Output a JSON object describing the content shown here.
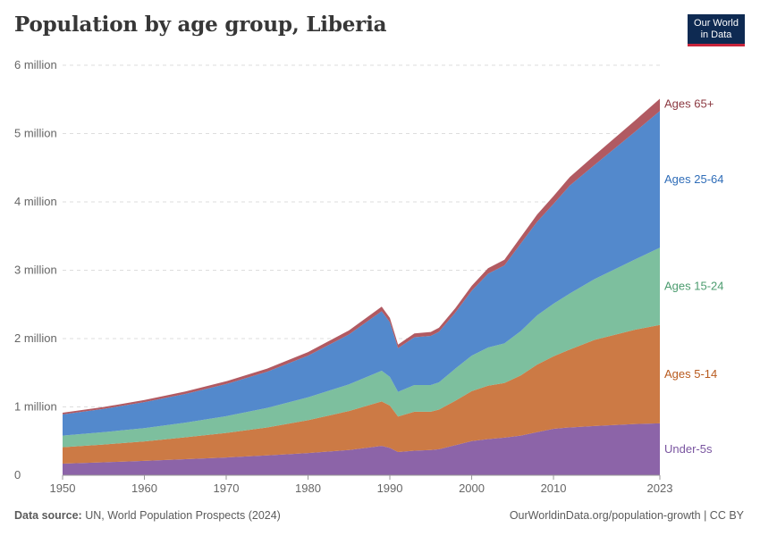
{
  "header": {
    "title": "Population by age group, Liberia",
    "logo_line1": "Our World",
    "logo_line2": "in Data"
  },
  "footer": {
    "source_label": "Data source:",
    "source_text": "UN, World Population Prospects (2024)",
    "url": "OurWorldinData.org/population-growth | CC BY"
  },
  "chart_data": {
    "type": "area",
    "stacked": true,
    "title": "Population by age group, Liberia",
    "xlabel": "",
    "ylabel": "",
    "xlim": [
      1950,
      2023
    ],
    "ylim": [
      0,
      6000000
    ],
    "y_ticks": [
      {
        "value": 0,
        "label": "0"
      },
      {
        "value": 1000000,
        "label": "1 million"
      },
      {
        "value": 2000000,
        "label": "2 million"
      },
      {
        "value": 3000000,
        "label": "3 million"
      },
      {
        "value": 4000000,
        "label": "4 million"
      },
      {
        "value": 5000000,
        "label": "5 million"
      },
      {
        "value": 6000000,
        "label": "6 million"
      }
    ],
    "x_ticks": [
      {
        "value": 1950,
        "label": "1950"
      },
      {
        "value": 1960,
        "label": "1960"
      },
      {
        "value": 1970,
        "label": "1970"
      },
      {
        "value": 1980,
        "label": "1980"
      },
      {
        "value": 1990,
        "label": "1990"
      },
      {
        "value": 2000,
        "label": "2000"
      },
      {
        "value": 2010,
        "label": "2010"
      },
      {
        "value": 2023,
        "label": "2023"
      }
    ],
    "grid": "horizontal dashed",
    "legend": "inline labels at right",
    "x": [
      1950,
      1955,
      1960,
      1965,
      1970,
      1975,
      1980,
      1985,
      1989,
      1990,
      1991,
      1993,
      1995,
      1996,
      1998,
      2000,
      2002,
      2004,
      2006,
      2008,
      2010,
      2012,
      2015,
      2020,
      2023
    ],
    "series": [
      {
        "name": "Under-5s",
        "color": "#8c64a8",
        "label_color": "#7a55a0",
        "values": [
          170000,
          190000,
          210000,
          235000,
          260000,
          290000,
          325000,
          370000,
          430000,
          400000,
          340000,
          360000,
          370000,
          380000,
          440000,
          500000,
          530000,
          550000,
          580000,
          630000,
          680000,
          700000,
          720000,
          750000,
          760000
        ]
      },
      {
        "name": "Ages 5-14",
        "color": "#cc7a45",
        "label_color": "#b85a1e",
        "values": [
          240000,
          260000,
          285000,
          320000,
          360000,
          410000,
          480000,
          570000,
          650000,
          620000,
          520000,
          570000,
          560000,
          580000,
          650000,
          730000,
          780000,
          800000,
          880000,
          990000,
          1060000,
          1140000,
          1260000,
          1380000,
          1440000
        ]
      },
      {
        "name": "Ages 15-24",
        "color": "#7dbf9e",
        "label_color": "#4c9c6f",
        "values": [
          170000,
          180000,
          195000,
          215000,
          245000,
          285000,
          335000,
          390000,
          450000,
          420000,
          360000,
          390000,
          390000,
          400000,
          470000,
          520000,
          560000,
          580000,
          650000,
          720000,
          770000,
          820000,
          890000,
          1030000,
          1130000
        ]
      },
      {
        "name": "Ages 25-64",
        "color": "#5389cc",
        "label_color": "#2f6db8",
        "values": [
          310000,
          340000,
          380000,
          420000,
          470000,
          530000,
          610000,
          730000,
          870000,
          800000,
          640000,
          700000,
          720000,
          740000,
          820000,
          950000,
          1080000,
          1140000,
          1280000,
          1370000,
          1460000,
          1580000,
          1670000,
          1870000,
          2000000
        ]
      },
      {
        "name": "Ages 65+",
        "color": "#b15a62",
        "label_color": "#8c3a42",
        "values": [
          25000,
          28000,
          31000,
          35000,
          40000,
          46000,
          52000,
          60000,
          68000,
          63000,
          52000,
          56000,
          57000,
          59000,
          64000,
          72000,
          80000,
          84000,
          95000,
          105000,
          115000,
          125000,
          140000,
          165000,
          180000
        ]
      }
    ]
  }
}
